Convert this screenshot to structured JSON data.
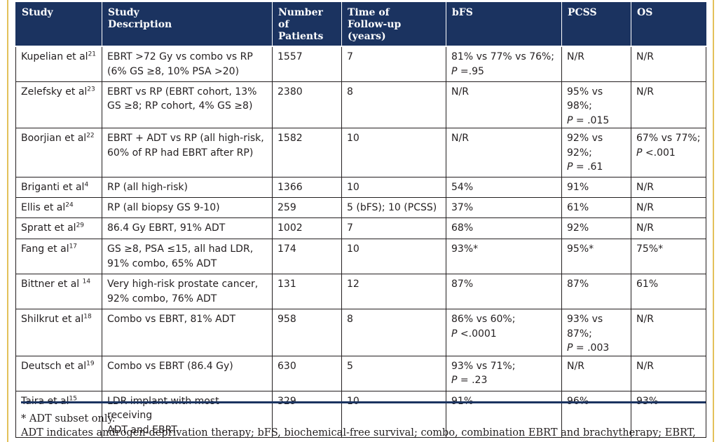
{
  "headers": [
    "Study",
    "Study\nDescription",
    "Number\nof Patients",
    "Time of\nFollow-up (years)",
    "bFS",
    "PCSS",
    "OS"
  ],
  "rows": [
    {
      "study": "Kupelian et al",
      "ref": "21",
      "desc": "EBRT >72 Gy vs combo vs RP\n(6% GS ≥8, 10% PSA >20)",
      "patients": "1557",
      "followup": "7",
      "bfs": {
        "text": "81% vs 77% vs 76%;",
        "p_label": "P",
        "p_value": " =.95"
      },
      "pcss": {
        "text": "N/R"
      },
      "os": {
        "text": "N/R"
      }
    },
    {
      "study": "Zelefsky et al",
      "ref": "23",
      "desc": "EBRT vs RP (EBRT cohort, 13%\nGS ≥8; RP cohort, 4% GS ≥8)",
      "patients": "2380",
      "followup": "8",
      "bfs": {
        "text": "N/R"
      },
      "pcss": {
        "text": "95% vs 98%;",
        "p_label": "P",
        "p_value": " = .015"
      },
      "os": {
        "text": "N/R"
      }
    },
    {
      "study": "Boorjian et al",
      "ref": "22",
      "desc": "EBRT + ADT vs RP (all high-risk,\n60% of RP had EBRT after RP)",
      "patients": "1582",
      "followup": "10",
      "bfs": {
        "text": "N/R"
      },
      "pcss": {
        "text": "92% vs 92%;",
        "p_label": "P",
        "p_value": " = .61"
      },
      "os": {
        "text": "67% vs 77%;",
        "p_label": "P",
        "p_value": " <.001"
      }
    },
    {
      "study": "Briganti et al",
      "ref": "4",
      "desc": "RP (all high-risk)",
      "patients": "1366",
      "followup": "10",
      "bfs": {
        "text": "54%"
      },
      "pcss": {
        "text": "91%"
      },
      "os": {
        "text": "N/R"
      }
    },
    {
      "study": "Ellis et al",
      "ref": "24",
      "desc": "RP (all biopsy GS 9-10)",
      "patients": "259",
      "followup": "5 (bFS); 10 (PCSS)",
      "bfs": {
        "text": "37%"
      },
      "pcss": {
        "text": "61%"
      },
      "os": {
        "text": "N/R"
      }
    },
    {
      "study": "Spratt et al",
      "ref": "29",
      "desc": "86.4 Gy EBRT, 91% ADT",
      "patients": "1002",
      "followup": "7",
      "bfs": {
        "text": "68%"
      },
      "pcss": {
        "text": "92%"
      },
      "os": {
        "text": "N/R"
      }
    },
    {
      "study": "Fang et al",
      "ref": "17",
      "desc": "GS ≥8, PSA ≤15, all had LDR,\n91% combo, 65% ADT",
      "patients": "174",
      "followup": "10",
      "bfs": {
        "text": "93%*"
      },
      "pcss": {
        "text": "95%*"
      },
      "os": {
        "text": "75%*"
      }
    },
    {
      "study": "Bittner et al ",
      "ref": "14",
      "desc": "Very high-risk prostate cancer,\n92% combo, 76% ADT",
      "patients": "131",
      "followup": "12",
      "bfs": {
        "text": "87%"
      },
      "pcss": {
        "text": "87%"
      },
      "os": {
        "text": "61%"
      }
    },
    {
      "study": "Shilkrut et al",
      "ref": "18",
      "desc": "Combo vs EBRT, 81% ADT",
      "patients": "958",
      "followup": "8",
      "bfs": {
        "text": "86% vs 60%;",
        "p_label": "P",
        "p_value": " <.0001"
      },
      "pcss": {
        "text": "93% vs 87%;",
        "p_label": "P",
        "p_value": " = .003"
      },
      "os": {
        "text": "N/R"
      }
    },
    {
      "study": "Deutsch et al",
      "ref": "19",
      "desc": "Combo vs EBRT (86.4 Gy)",
      "patients": "630",
      "followup": "5",
      "bfs": {
        "text": "93% vs 71%;",
        "p_label": "P",
        "p_value": " = .23"
      },
      "pcss": {
        "text": "N/R"
      },
      "os": {
        "text": "N/R"
      }
    },
    {
      "study": "Taira et al",
      "ref": "15",
      "desc": "LDR implant with most receiving\nADT and EBRT",
      "patients": "329",
      "followup": "10",
      "bfs": {
        "text": "91%"
      },
      "pcss": {
        "text": "96%"
      },
      "os": {
        "text": "93%"
      }
    }
  ],
  "footnotes": [
    "* ADT subset only.",
    "ADT indicates androgen-deprivation therapy;  bFS, biochemical-free survival; combo, combination EBRT and brachytherapy; EBRT,"
  ]
}
